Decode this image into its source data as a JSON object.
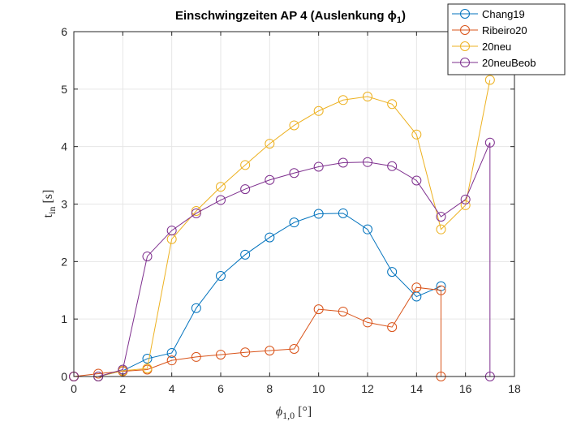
{
  "chart_data": {
    "type": "line",
    "title": "Einschwingzeiten AP 4 (Auslenkung ϕ",
    "title_sub": "1",
    "title_end": ")",
    "xlabel": "ϕ",
    "xlabel_sub": "1,0",
    "xlabel_unit": " [°]",
    "ylabel": "t",
    "ylabel_sub": "in",
    "ylabel_unit": " [s]",
    "xlim": [
      0,
      18
    ],
    "ylim": [
      0,
      6
    ],
    "xticks": [
      0,
      2,
      4,
      6,
      8,
      10,
      12,
      14,
      16,
      18
    ],
    "yticks": [
      0,
      1,
      2,
      3,
      4,
      5,
      6
    ],
    "grid": true,
    "legend_position": "top-right",
    "marker": "circle",
    "series": [
      {
        "name": "Chang19",
        "color": "#0072BD",
        "x": [
          0,
          1,
          2,
          3,
          4,
          5,
          6,
          7,
          8,
          9,
          10,
          11,
          12,
          13,
          14,
          15
        ],
        "y": [
          0,
          0,
          0.1,
          0.31,
          0.41,
          1.19,
          1.75,
          2.12,
          2.42,
          2.68,
          2.83,
          2.84,
          2.56,
          1.82,
          1.39,
          1.57
        ]
      },
      {
        "name": "Ribeiro20",
        "color": "#D95319",
        "x": [
          0,
          1,
          2,
          3,
          4,
          5,
          6,
          7,
          8,
          9,
          10,
          11,
          12,
          13,
          14,
          15,
          15
        ],
        "y": [
          0,
          0.05,
          0.09,
          0.12,
          0.28,
          0.34,
          0.38,
          0.42,
          0.45,
          0.48,
          1.17,
          1.13,
          0.94,
          0.86,
          1.55,
          1.5,
          0
        ]
      },
      {
        "name": "20neu",
        "color": "#EDB120",
        "x": [
          0,
          1,
          2,
          3,
          4,
          5,
          6,
          7,
          8,
          9,
          10,
          11,
          12,
          13,
          14,
          15,
          16,
          17
        ],
        "y": [
          0,
          0,
          0.1,
          0.14,
          2.39,
          2.88,
          3.3,
          3.68,
          4.05,
          4.37,
          4.62,
          4.81,
          4.87,
          4.74,
          4.21,
          2.56,
          2.98,
          5.16
        ]
      },
      {
        "name": "20neuBeob",
        "color": "#7E2F8E",
        "x": [
          0,
          1,
          2,
          3,
          4,
          5,
          6,
          7,
          8,
          9,
          10,
          11,
          12,
          13,
          14,
          15,
          16,
          17,
          17
        ],
        "y": [
          0,
          0,
          0.12,
          2.09,
          2.54,
          2.84,
          3.07,
          3.26,
          3.42,
          3.54,
          3.65,
          3.72,
          3.73,
          3.66,
          3.41,
          2.78,
          3.08,
          4.07,
          0
        ]
      }
    ]
  }
}
